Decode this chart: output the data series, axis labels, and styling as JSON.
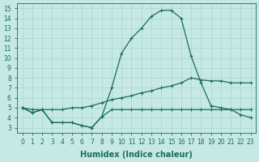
{
  "xlabel": "Humidex (Indice chaleur)",
  "xlim": [
    -0.5,
    23.5
  ],
  "ylim": [
    2.5,
    15.5
  ],
  "xticks": [
    0,
    1,
    2,
    3,
    4,
    5,
    6,
    7,
    8,
    9,
    10,
    11,
    12,
    13,
    14,
    15,
    16,
    17,
    18,
    19,
    20,
    21,
    22,
    23
  ],
  "yticks": [
    3,
    4,
    5,
    6,
    7,
    8,
    9,
    10,
    11,
    12,
    13,
    14,
    15
  ],
  "bg_color": "#c6e9e6",
  "grid_color": "#a8d5d0",
  "line_color": "#1a6b60",
  "line_a_x": [
    0,
    1,
    2,
    3,
    4,
    5,
    6,
    7,
    8,
    9,
    10,
    11,
    12,
    13,
    14,
    15,
    16,
    17,
    18,
    19,
    20,
    21,
    22,
    23
  ],
  "line_a_y": [
    5.0,
    4.5,
    4.8,
    3.5,
    3.5,
    3.5,
    3.2,
    3.0,
    4.1,
    4.8,
    4.8,
    4.8,
    4.8,
    4.8,
    4.8,
    4.8,
    4.8,
    4.8,
    4.8,
    4.8,
    4.8,
    4.8,
    4.8,
    4.8
  ],
  "line_b_x": [
    0,
    1,
    2,
    3,
    4,
    5,
    6,
    7,
    8,
    9,
    10,
    11,
    12,
    13,
    14,
    15,
    16,
    17,
    18,
    19,
    20,
    21,
    22,
    23
  ],
  "line_b_y": [
    5.0,
    4.5,
    4.8,
    3.5,
    3.5,
    3.5,
    3.2,
    3.0,
    4.1,
    7.0,
    10.5,
    12.0,
    13.0,
    14.2,
    14.8,
    14.8,
    14.0,
    10.2,
    7.5,
    5.2,
    5.0,
    4.8,
    4.3,
    4.0
  ],
  "line_c_x": [
    0,
    1,
    2,
    3,
    4,
    5,
    6,
    7,
    8,
    9,
    10,
    11,
    12,
    13,
    14,
    15,
    16,
    17,
    18,
    19,
    20,
    21,
    22,
    23
  ],
  "line_c_y": [
    5.0,
    4.8,
    4.8,
    4.8,
    4.8,
    5.0,
    5.0,
    5.2,
    5.5,
    5.8,
    6.0,
    6.2,
    6.5,
    6.7,
    7.0,
    7.2,
    7.5,
    8.0,
    7.8,
    7.7,
    7.7,
    7.5,
    7.5,
    7.5
  ],
  "marker": "+",
  "markersize": 3.5,
  "linewidth": 0.9,
  "tick_fontsize": 5.5,
  "label_fontsize": 7
}
